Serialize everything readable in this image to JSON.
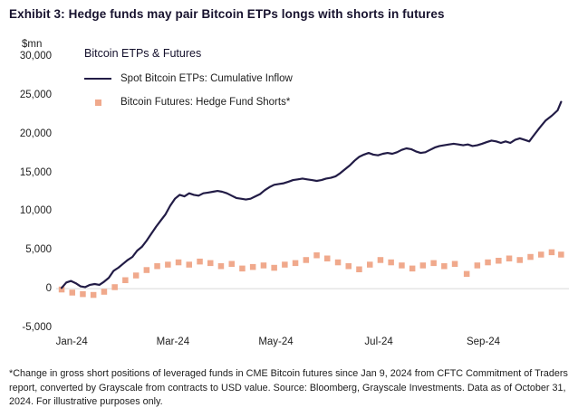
{
  "title": "Exhibit 3: Hedge funds may pair Bitcoin ETPs longs with shorts in futures",
  "footnote": "*Change in gross short positions of leveraged funds in CME Bitcoin futures since Jan 9, 2024 from CFTC Commitment of Traders report, converted by Grayscale from contracts to USD value. Source: Bloomberg, Grayscale Investments. Data as of October 31, 2024. For illustrative purposes only.",
  "chart_data": {
    "type": "line+scatter",
    "title": "Bitcoin ETPs & Futures",
    "unit_label": "$mn",
    "legend_position": "top-left",
    "grid": "zero-line-only",
    "gridline_color": "#d9d9d9",
    "x_domain_weeks": [
      0,
      42.5
    ],
    "y_domain": [
      -5000,
      30000
    ],
    "y_ticks": [
      {
        "value": 30000,
        "label": "30,000"
      },
      {
        "value": 25000,
        "label": "25,000"
      },
      {
        "value": 20000,
        "label": "20,000"
      },
      {
        "value": 15000,
        "label": "15,000"
      },
      {
        "value": 10000,
        "label": "10,000"
      },
      {
        "value": 5000,
        "label": "5,000"
      },
      {
        "value": 0,
        "label": "0"
      },
      {
        "value": -5000,
        "label": "-5,000"
      }
    ],
    "x_ticks": [
      {
        "t": 0.86,
        "label": "Jan-24"
      },
      {
        "t": 9.43,
        "label": "Mar-24"
      },
      {
        "t": 18.14,
        "label": "May-24"
      },
      {
        "t": 26.86,
        "label": "Jul-24"
      },
      {
        "t": 35.71,
        "label": "Sep-24"
      }
    ],
    "series": [
      {
        "name": "Spot Bitcoin ETPs: Cumulative Inflow",
        "type": "line",
        "color": "#221c46",
        "points": [
          [
            0,
            100
          ],
          [
            0.4,
            800
          ],
          [
            0.8,
            1000
          ],
          [
            1.2,
            700
          ],
          [
            1.6,
            300
          ],
          [
            2,
            200
          ],
          [
            2.4,
            500
          ],
          [
            2.8,
            600
          ],
          [
            3.2,
            500
          ],
          [
            3.6,
            900
          ],
          [
            4,
            1400
          ],
          [
            4.4,
            2300
          ],
          [
            4.8,
            2700
          ],
          [
            5.2,
            3200
          ],
          [
            5.6,
            3700
          ],
          [
            6,
            4100
          ],
          [
            6.4,
            4900
          ],
          [
            6.8,
            5400
          ],
          [
            7.2,
            6200
          ],
          [
            7.6,
            7100
          ],
          [
            8,
            8000
          ],
          [
            8.4,
            8800
          ],
          [
            8.8,
            9600
          ],
          [
            9.2,
            10700
          ],
          [
            9.6,
            11600
          ],
          [
            10,
            12100
          ],
          [
            10.4,
            11900
          ],
          [
            10.8,
            12300
          ],
          [
            11.2,
            12100
          ],
          [
            11.6,
            12000
          ],
          [
            12,
            12300
          ],
          [
            12.4,
            12400
          ],
          [
            12.8,
            12500
          ],
          [
            13.2,
            12600
          ],
          [
            13.6,
            12500
          ],
          [
            14,
            12300
          ],
          [
            14.4,
            12000
          ],
          [
            14.8,
            11700
          ],
          [
            15.2,
            11600
          ],
          [
            15.6,
            11500
          ],
          [
            16,
            11600
          ],
          [
            16.4,
            11900
          ],
          [
            16.8,
            12200
          ],
          [
            17.2,
            12700
          ],
          [
            17.6,
            13100
          ],
          [
            18,
            13400
          ],
          [
            18.4,
            13500
          ],
          [
            18.8,
            13600
          ],
          [
            19.2,
            13800
          ],
          [
            19.6,
            14000
          ],
          [
            20,
            14100
          ],
          [
            20.4,
            14200
          ],
          [
            20.8,
            14100
          ],
          [
            21.2,
            14000
          ],
          [
            21.6,
            13900
          ],
          [
            22,
            14000
          ],
          [
            22.4,
            14200
          ],
          [
            22.8,
            14300
          ],
          [
            23.2,
            14500
          ],
          [
            23.6,
            14900
          ],
          [
            24,
            15400
          ],
          [
            24.4,
            15900
          ],
          [
            24.8,
            16500
          ],
          [
            25.2,
            17000
          ],
          [
            25.6,
            17300
          ],
          [
            26,
            17500
          ],
          [
            26.4,
            17300
          ],
          [
            26.8,
            17200
          ],
          [
            27.2,
            17400
          ],
          [
            27.6,
            17500
          ],
          [
            28,
            17400
          ],
          [
            28.4,
            17600
          ],
          [
            28.8,
            17900
          ],
          [
            29.2,
            18100
          ],
          [
            29.6,
            18000
          ],
          [
            30,
            17700
          ],
          [
            30.4,
            17500
          ],
          [
            30.8,
            17600
          ],
          [
            31.2,
            17900
          ],
          [
            31.6,
            18200
          ],
          [
            32,
            18400
          ],
          [
            32.4,
            18500
          ],
          [
            32.8,
            18600
          ],
          [
            33.2,
            18700
          ],
          [
            33.6,
            18600
          ],
          [
            34,
            18500
          ],
          [
            34.4,
            18600
          ],
          [
            34.8,
            18400
          ],
          [
            35.2,
            18500
          ],
          [
            35.6,
            18700
          ],
          [
            36,
            18900
          ],
          [
            36.4,
            19100
          ],
          [
            36.8,
            19000
          ],
          [
            37.2,
            18800
          ],
          [
            37.6,
            19000
          ],
          [
            38,
            18800
          ],
          [
            38.4,
            19200
          ],
          [
            38.8,
            19400
          ],
          [
            39.2,
            19200
          ],
          [
            39.6,
            19000
          ],
          [
            40,
            19800
          ],
          [
            40.5,
            20800
          ],
          [
            41,
            21700
          ],
          [
            41.5,
            22300
          ],
          [
            42,
            23000
          ],
          [
            42.3,
            24100
          ]
        ]
      },
      {
        "name": "Bitcoin Futures: Hedge Fund Shorts*",
        "type": "scatter",
        "color": "#f0a98c",
        "points": [
          [
            0,
            -100
          ],
          [
            0.9,
            -500
          ],
          [
            1.8,
            -700
          ],
          [
            2.7,
            -800
          ],
          [
            3.6,
            -400
          ],
          [
            4.5,
            200
          ],
          [
            5.4,
            1100
          ],
          [
            6.3,
            1700
          ],
          [
            7.2,
            2400
          ],
          [
            8.1,
            2900
          ],
          [
            9,
            3100
          ],
          [
            9.9,
            3400
          ],
          [
            10.8,
            3100
          ],
          [
            11.7,
            3500
          ],
          [
            12.6,
            3300
          ],
          [
            13.5,
            2900
          ],
          [
            14.4,
            3200
          ],
          [
            15.3,
            2600
          ],
          [
            16.2,
            2800
          ],
          [
            17.1,
            3000
          ],
          [
            18,
            2700
          ],
          [
            18.9,
            3100
          ],
          [
            19.8,
            3300
          ],
          [
            20.7,
            3700
          ],
          [
            21.6,
            4300
          ],
          [
            22.5,
            3900
          ],
          [
            23.4,
            3400
          ],
          [
            24.3,
            2900
          ],
          [
            25.2,
            2500
          ],
          [
            26.1,
            3100
          ],
          [
            27,
            3700
          ],
          [
            27.9,
            3400
          ],
          [
            28.8,
            3000
          ],
          [
            29.7,
            2600
          ],
          [
            30.6,
            3000
          ],
          [
            31.5,
            3300
          ],
          [
            32.4,
            2900
          ],
          [
            33.3,
            3200
          ],
          [
            34.3,
            1900
          ],
          [
            35.2,
            3000
          ],
          [
            36.1,
            3400
          ],
          [
            37,
            3600
          ],
          [
            37.9,
            3900
          ],
          [
            38.8,
            3700
          ],
          [
            39.7,
            4100
          ],
          [
            40.6,
            4400
          ],
          [
            41.5,
            4700
          ],
          [
            42.3,
            4400
          ]
        ]
      }
    ]
  }
}
